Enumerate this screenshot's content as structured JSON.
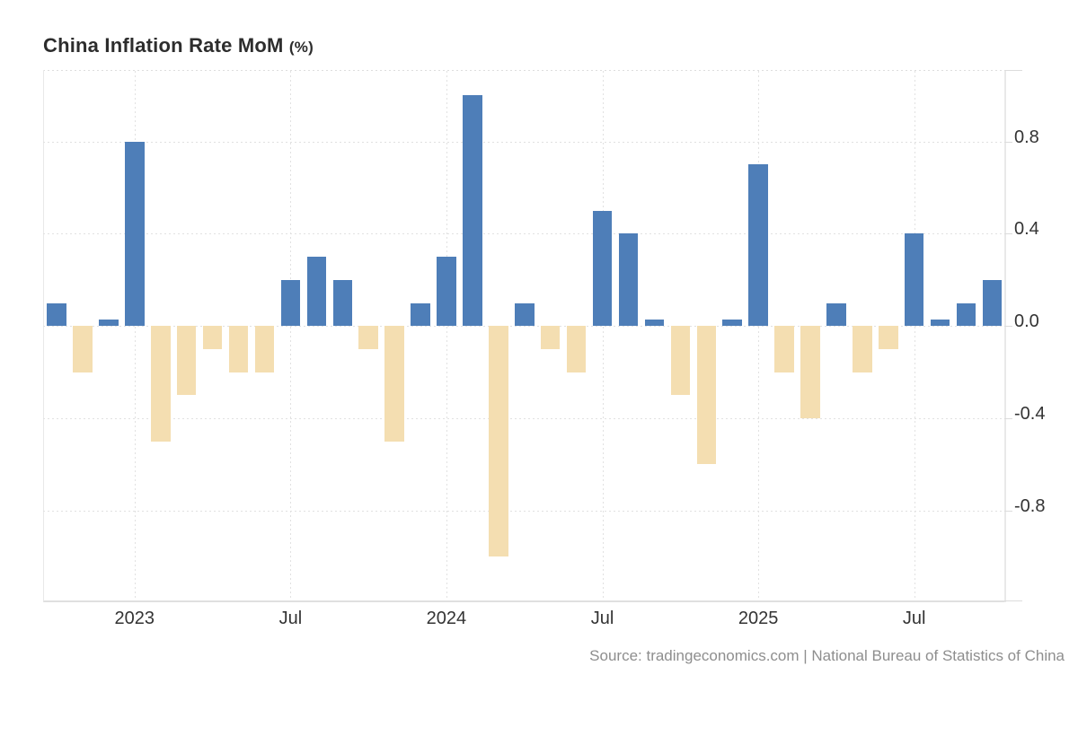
{
  "header": {
    "title": "China Inflation Rate MoM",
    "unit": "(%)"
  },
  "footer": {
    "source": "Source: tradingeconomics.com | National Bureau of Statistics of China"
  },
  "colors": {
    "positive_bar": "#4e7eb8",
    "negative_bar": "#f4deb1",
    "gridline": "#e1e1e1",
    "axis_label": "#333333",
    "source_text": "#8e8e8e"
  },
  "chart_data": {
    "type": "bar",
    "title": "China Inflation Rate MoM (%)",
    "xlabel": "",
    "ylabel": "%",
    "grid": "dotted",
    "legend": "none",
    "ylim": [
      -1.19,
      1.11
    ],
    "x": [
      "2022-10",
      "2022-11",
      "2022-12",
      "2023-01",
      "2023-02",
      "2023-03",
      "2023-04",
      "2023-05",
      "2023-06",
      "2023-07",
      "2023-08",
      "2023-09",
      "2023-10",
      "2023-11",
      "2023-12",
      "2024-01",
      "2024-02",
      "2024-03",
      "2024-04",
      "2024-05",
      "2024-06",
      "2024-07",
      "2024-08",
      "2024-09",
      "2024-10",
      "2024-11",
      "2024-12",
      "2025-01",
      "2025-02",
      "2025-03",
      "2025-04",
      "2025-05",
      "2025-06",
      "2025-07",
      "2025-08",
      "2025-09",
      "2025-10"
    ],
    "values": [
      0.1,
      -0.2,
      0.0,
      0.8,
      -0.5,
      -0.3,
      -0.1,
      -0.2,
      -0.2,
      0.2,
      0.3,
      0.2,
      -0.1,
      -0.5,
      0.1,
      0.3,
      1.0,
      -1.0,
      0.1,
      -0.1,
      -0.2,
      0.5,
      0.4,
      0.0,
      -0.3,
      -0.6,
      0.0,
      0.7,
      -0.2,
      -0.4,
      0.1,
      -0.2,
      -0.1,
      0.4,
      0.0,
      0.1,
      0.2
    ],
    "y_ticks": [
      {
        "label": "0.8",
        "value": 0.8
      },
      {
        "label": "0.4",
        "value": 0.4
      },
      {
        "label": "0.0",
        "value": 0.0
      },
      {
        "label": "-0.4",
        "value": -0.4
      },
      {
        "label": "-0.8",
        "value": -0.8
      }
    ],
    "x_ticks": [
      {
        "label": "2023",
        "month": "2023-01"
      },
      {
        "label": "Jul",
        "month": "2023-07"
      },
      {
        "label": "2024",
        "month": "2024-01"
      },
      {
        "label": "Jul",
        "month": "2024-07"
      },
      {
        "label": "2025",
        "month": "2025-01"
      },
      {
        "label": "Jul",
        "month": "2025-07"
      }
    ]
  }
}
